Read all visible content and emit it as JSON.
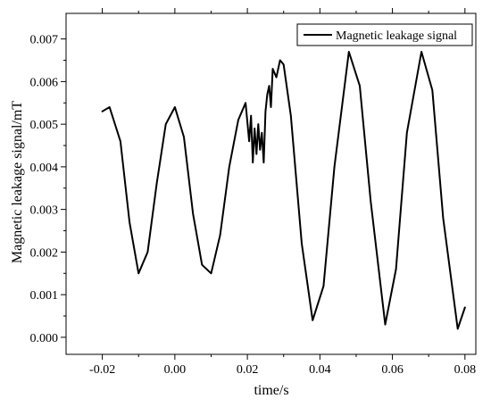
{
  "chart_data": {
    "type": "line",
    "title": "",
    "xlabel": "time/s",
    "ylabel": "Magnetic leakage signal/mT",
    "xlim": [
      -0.03,
      0.083
    ],
    "ylim": [
      -0.0004,
      0.0076
    ],
    "x_ticks": [
      -0.02,
      0.0,
      0.02,
      0.04,
      0.06,
      0.08
    ],
    "x_tick_labels": [
      "-0.02",
      "0.00",
      "0.02",
      "0.04",
      "0.06",
      "0.08"
    ],
    "y_ticks": [
      0.0,
      0.001,
      0.002,
      0.003,
      0.004,
      0.005,
      0.006,
      0.007
    ],
    "y_tick_labels": [
      "0.000",
      "0.001",
      "0.002",
      "0.003",
      "0.004",
      "0.005",
      "0.006",
      "0.007"
    ],
    "grid": false,
    "legend_position": "top-right",
    "series": [
      {
        "name": "Magnetic leakage signal",
        "color": "#000000",
        "x": [
          -0.02,
          -0.018,
          -0.015,
          -0.0125,
          -0.01,
          -0.0075,
          -0.005,
          -0.0025,
          0.0,
          0.0025,
          0.005,
          0.0075,
          0.01,
          0.0125,
          0.015,
          0.0175,
          0.0195,
          0.0205,
          0.021,
          0.0215,
          0.022,
          0.0225,
          0.023,
          0.0235,
          0.024,
          0.0245,
          0.025,
          0.0255,
          0.026,
          0.0265,
          0.027,
          0.028,
          0.029,
          0.03,
          0.032,
          0.035,
          0.038,
          0.041,
          0.044,
          0.048,
          0.051,
          0.054,
          0.058,
          0.061,
          0.064,
          0.068,
          0.071,
          0.074,
          0.078,
          0.08
        ],
        "y": [
          0.0053,
          0.0054,
          0.0046,
          0.0027,
          0.0015,
          0.002,
          0.0036,
          0.005,
          0.0054,
          0.0047,
          0.0029,
          0.0017,
          0.0015,
          0.0024,
          0.004,
          0.0051,
          0.0055,
          0.0046,
          0.0052,
          0.0041,
          0.0049,
          0.0043,
          0.005,
          0.0044,
          0.0048,
          0.0041,
          0.0053,
          0.0057,
          0.0059,
          0.0054,
          0.0063,
          0.0061,
          0.0065,
          0.0064,
          0.0052,
          0.0022,
          0.0004,
          0.0012,
          0.004,
          0.0067,
          0.0059,
          0.0032,
          0.0003,
          0.0016,
          0.0048,
          0.0067,
          0.0058,
          0.0028,
          0.0002,
          0.0007
        ]
      }
    ]
  }
}
